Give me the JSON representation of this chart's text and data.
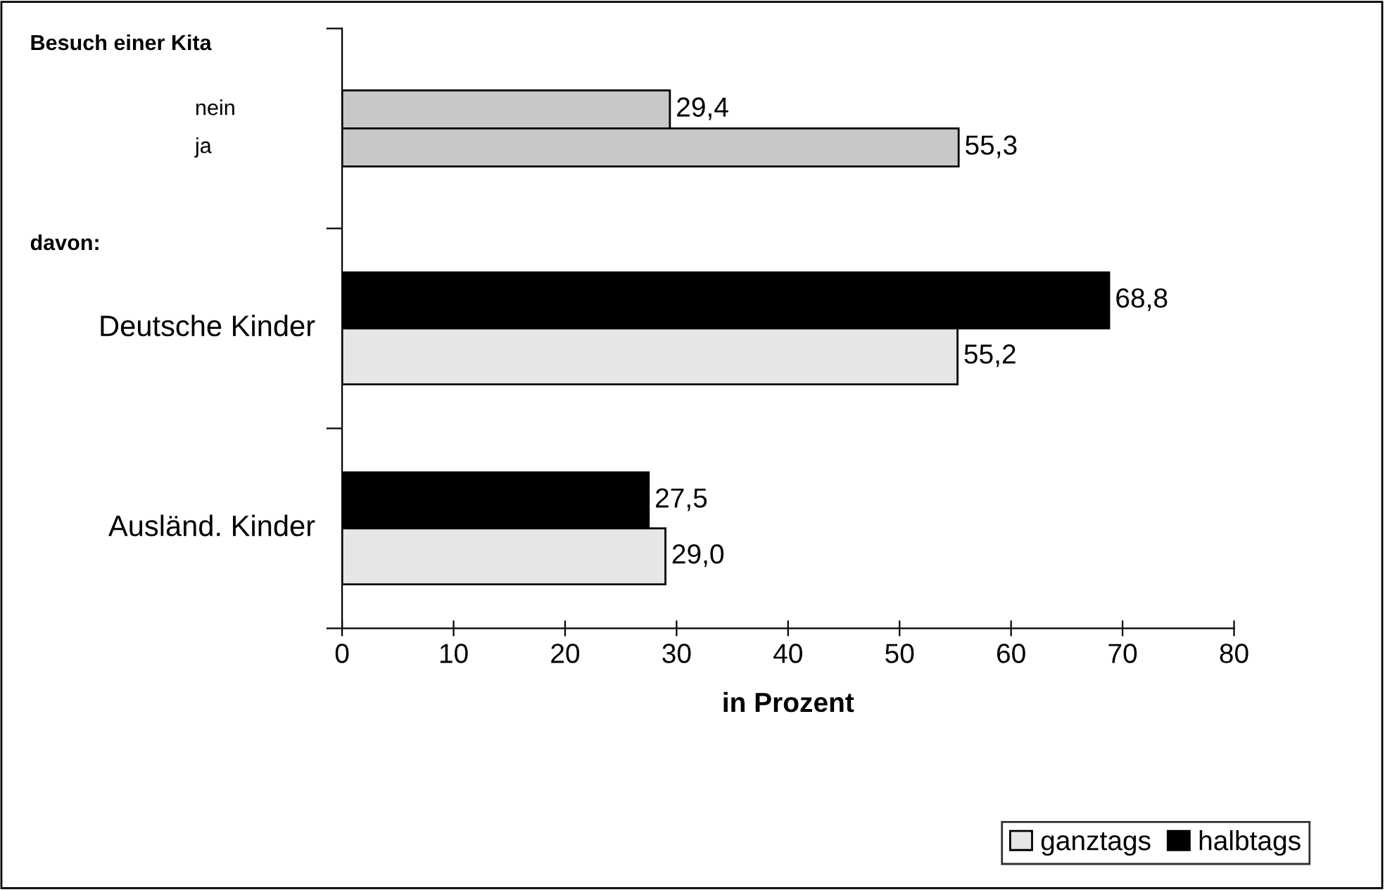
{
  "chart_data": {
    "type": "bar",
    "orientation": "horizontal",
    "xlabel": "in Prozent",
    "categories": [
      "nein",
      "ja",
      "Deutsche Kinder",
      "Ausländ. Kinder"
    ],
    "series": [
      {
        "color": "#c8c8c8",
        "values": [
          29.4,
          55.3,
          null,
          null
        ],
        "value_labels": [
          "29,4",
          "55,3",
          null,
          null
        ]
      },
      {
        "name": "halbtags",
        "color": "#000000",
        "values": [
          null,
          null,
          68.8,
          27.5
        ],
        "value_labels": [
          null,
          null,
          "68,8",
          "27,5"
        ]
      },
      {
        "name": "ganztags",
        "color": "#e6e6e6",
        "values": [
          null,
          null,
          55.2,
          29.0
        ],
        "value_labels": [
          null,
          null,
          "55,2",
          "29,0"
        ]
      }
    ],
    "annotations": [
      "Besuch einer Kita",
      "davon:"
    ],
    "xlim": [
      0,
      80
    ],
    "xticks": [
      0,
      10,
      20,
      30,
      40,
      50,
      60,
      70,
      80
    ],
    "grid": false,
    "legend": "bottom right"
  }
}
